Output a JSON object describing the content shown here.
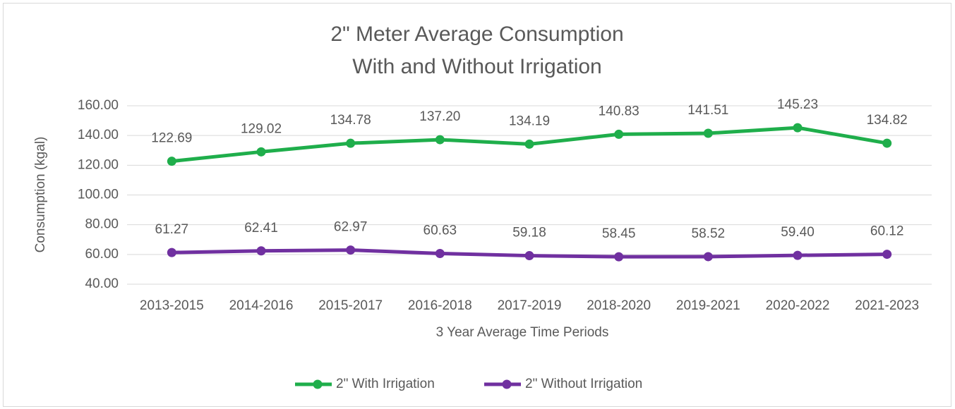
{
  "chart_data": {
    "type": "line",
    "title": [
      "2\" Meter Average Consumption",
      "With and Without Irrigation"
    ],
    "x_label": "3 Year Average Time Periods",
    "y_label": "Consumption (kgal)",
    "categories": [
      "2013-2015",
      "2014-2016",
      "2015-2017",
      "2016-2018",
      "2017-2019",
      "2018-2020",
      "2019-2021",
      "2020-2022",
      "2021-2023"
    ],
    "series": [
      {
        "name": "2\" With Irrigation",
        "color": "#1fae4b",
        "values": [
          122.69,
          129.02,
          134.78,
          137.2,
          134.19,
          140.83,
          141.51,
          145.23,
          134.82
        ],
        "value_labels": [
          "122.69",
          "129.02",
          "134.78",
          "137.20",
          "134.19",
          "140.83",
          "141.51",
          "145.23",
          "134.82"
        ]
      },
      {
        "name": "2\" Without Irrigation",
        "color": "#7030a0",
        "values": [
          61.27,
          62.41,
          62.97,
          60.63,
          59.18,
          58.45,
          58.52,
          59.4,
          60.12
        ],
        "value_labels": [
          "61.27",
          "62.41",
          "62.97",
          "60.63",
          "59.18",
          "58.45",
          "58.52",
          "59.40",
          "60.12"
        ]
      }
    ],
    "ylim": [
      40,
      160
    ],
    "yticks": [
      {
        "value": 40,
        "label": "40.00"
      },
      {
        "value": 60,
        "label": "60.00"
      },
      {
        "value": 80,
        "label": "80.00"
      },
      {
        "value": 100,
        "label": "100.00"
      },
      {
        "value": 120,
        "label": "120.00"
      },
      {
        "value": 140,
        "label": "140.00"
      },
      {
        "value": 160,
        "label": "160.00"
      }
    ],
    "grid": true,
    "legend": "bottom"
  }
}
